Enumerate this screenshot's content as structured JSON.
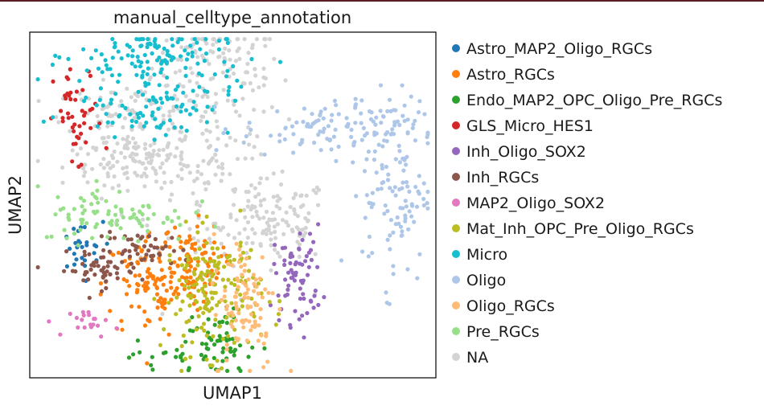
{
  "chart_data": {
    "type": "scatter",
    "title": "manual_celltype_annotation",
    "xlabel": "UMAP1",
    "ylabel": "UMAP2",
    "grid": false,
    "legend_position": "right, outside plot",
    "xlim": [
      0,
      100
    ],
    "ylim": [
      0,
      100
    ],
    "series": [
      {
        "name": "Astro_MAP2_Oligo_RGCs",
        "color": "#1f77b4",
        "n": 28,
        "clusters": [
          [
            12,
            37,
            3,
            4
          ]
        ]
      },
      {
        "name": "Astro_RGCs",
        "color": "#ff7f0e",
        "n": 190,
        "clusters": [
          [
            30,
            27,
            6,
            8
          ],
          [
            39,
            33,
            4,
            6
          ]
        ]
      },
      {
        "name": "Endo_MAP2_OPC_Oligo_Pre_RGCs",
        "color": "#2ca02c",
        "n": 75,
        "clusters": [
          [
            40,
            6,
            8,
            2.5
          ],
          [
            46,
            12,
            3,
            4
          ]
        ]
      },
      {
        "name": "GLS_Micro_HES1",
        "color": "#d62728",
        "n": 45,
        "clusters": [
          [
            12,
            74,
            3,
            8
          ]
        ]
      },
      {
        "name": "Inh_Oligo_SOX2",
        "color": "#9467bd",
        "n": 70,
        "clusters": [
          [
            66,
            30,
            3,
            7
          ]
        ]
      },
      {
        "name": "Inh_RGCs",
        "color": "#8c564b",
        "n": 95,
        "clusters": [
          [
            17,
            31,
            5,
            2.5
          ],
          [
            28,
            37,
            6,
            2.5
          ]
        ]
      },
      {
        "name": "MAP2_Oligo_SOX2",
        "color": "#e377c2",
        "n": 20,
        "clusters": [
          [
            16,
            16,
            3,
            2
          ]
        ]
      },
      {
        "name": "Mat_Inh_OPC_Pre_Oligo_RGCs",
        "color": "#bcbd22",
        "n": 170,
        "clusters": [
          [
            45,
            25,
            6,
            9
          ]
        ]
      },
      {
        "name": "Micro",
        "color": "#17becf",
        "n": 210,
        "clusters": [
          [
            32,
            93,
            10,
            4
          ],
          [
            30,
            80,
            10,
            5
          ]
        ]
      },
      {
        "name": "Oligo",
        "color": "#aec7e8",
        "n": 230,
        "clusters": [
          [
            74,
            72,
            11,
            4
          ],
          [
            90,
            55,
            4,
            14
          ]
        ]
      },
      {
        "name": "Oligo_RGCs",
        "color": "#ffbb78",
        "n": 95,
        "clusters": [
          [
            53,
            22,
            4,
            10
          ]
        ]
      },
      {
        "name": "Pre_RGCs",
        "color": "#98df8a",
        "n": 85,
        "clusters": [
          [
            21,
            47,
            9,
            4
          ]
        ]
      },
      {
        "name": "NA",
        "color": "#d3d3d3",
        "n": 560,
        "clusters": [
          [
            46,
            90,
            8,
            7
          ],
          [
            43,
            60,
            10,
            18
          ],
          [
            28,
            62,
            10,
            3
          ],
          [
            60,
            45,
            7,
            6
          ],
          [
            25,
            75,
            8,
            5
          ]
        ]
      }
    ]
  }
}
